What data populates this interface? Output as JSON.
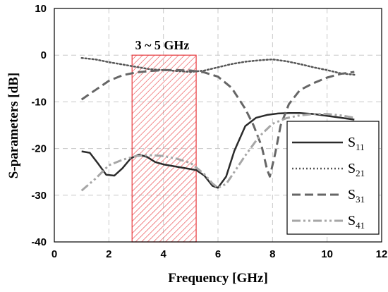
{
  "chart_data": {
    "type": "line",
    "xlabel": "Frequency [GHz]",
    "ylabel": "S-parameters [dB]",
    "xlim": [
      0,
      12
    ],
    "ylim": [
      -40,
      10
    ],
    "xticks": [
      "0",
      "2",
      "4",
      "6",
      "8",
      "10",
      "12"
    ],
    "yticks": [
      "10",
      "0",
      "-10",
      "-20",
      "-30",
      "-40"
    ],
    "grid": "dashed, major",
    "legend_position": "lower-right",
    "band": {
      "label": "3 ~ 5 GHz",
      "x_start": 2.85,
      "x_end": 5.2,
      "y_top": 0,
      "color": "#e8393d"
    },
    "series": [
      {
        "name": "S11",
        "base": "S",
        "sub": "11",
        "color": "#2b2b2b",
        "dash": "solid",
        "width": 2.5,
        "x": [
          1,
          1.3,
          1.6,
          1.9,
          2.2,
          2.5,
          2.8,
          3.1,
          3.4,
          3.7,
          4.0,
          4.3,
          4.6,
          4.9,
          5.2,
          5.5,
          5.8,
          6.0,
          6.3,
          6.6,
          7.0,
          7.4,
          7.8,
          8.2,
          8.6,
          9.0,
          9.5,
          10.0,
          10.5,
          11.0
        ],
        "y": [
          -20.6,
          -20.9,
          -23.2,
          -25.6,
          -25.8,
          -24.2,
          -22.1,
          -21.3,
          -21.8,
          -22.9,
          -23.4,
          -23.7,
          -24.0,
          -24.3,
          -24.6,
          -25.8,
          -28.0,
          -28.4,
          -26.0,
          -20.5,
          -15.2,
          -13.4,
          -12.8,
          -12.5,
          -12.4,
          -12.4,
          -12.6,
          -13.0,
          -13.4,
          -13.8
        ]
      },
      {
        "name": "S21",
        "base": "S",
        "sub": "21",
        "color": "#555555",
        "dash": "dotted",
        "width": 2.5,
        "x": [
          1,
          1.5,
          2.0,
          2.5,
          3.0,
          3.5,
          4.0,
          4.5,
          5.0,
          5.5,
          6.0,
          6.5,
          7.0,
          7.5,
          8.0,
          8.5,
          9.0,
          9.5,
          10.0,
          10.5,
          11.0
        ],
        "y": [
          -0.6,
          -0.9,
          -1.5,
          -2.0,
          -2.5,
          -3.0,
          -3.2,
          -3.4,
          -3.6,
          -3.3,
          -2.6,
          -1.9,
          -1.4,
          -1.1,
          -0.9,
          -1.3,
          -1.9,
          -2.6,
          -3.2,
          -3.9,
          -4.2
        ]
      },
      {
        "name": "S31",
        "base": "S",
        "sub": "31",
        "color": "#666666",
        "dash": "long-dash",
        "width": 3,
        "x": [
          1,
          1.5,
          2.0,
          2.5,
          3.0,
          3.5,
          4.0,
          4.5,
          5.0,
          5.5,
          6.0,
          6.5,
          7.0,
          7.3,
          7.6,
          7.8,
          7.9,
          8.1,
          8.3,
          8.6,
          9.0,
          9.5,
          10.0,
          10.5,
          11.0
        ],
        "y": [
          -9.5,
          -7.5,
          -5.5,
          -4.3,
          -3.7,
          -3.4,
          -3.2,
          -3.2,
          -3.3,
          -3.7,
          -4.6,
          -7.0,
          -11.5,
          -15.0,
          -19.5,
          -24.5,
          -26.0,
          -21.0,
          -15.0,
          -10.5,
          -7.5,
          -6.0,
          -4.8,
          -4.0,
          -3.6
        ]
      },
      {
        "name": "S41",
        "base": "S",
        "sub": "41",
        "color": "#a6a6a6",
        "dash": "dash-dot-dot",
        "width": 3,
        "x": [
          1,
          1.5,
          2.0,
          2.5,
          3.0,
          3.5,
          4.0,
          4.5,
          5.0,
          5.5,
          5.8,
          6.0,
          6.3,
          6.6,
          7.0,
          7.5,
          8.0,
          8.5,
          9.0,
          9.5,
          10.0,
          10.5,
          11.0
        ],
        "y": [
          -29.0,
          -26.5,
          -23.6,
          -22.4,
          -21.6,
          -21.4,
          -21.6,
          -22.2,
          -23.1,
          -25.5,
          -27.5,
          -28.4,
          -27.6,
          -25.0,
          -21.5,
          -17.5,
          -14.7,
          -13.5,
          -12.9,
          -12.6,
          -12.6,
          -12.9,
          -13.4
        ]
      }
    ]
  }
}
